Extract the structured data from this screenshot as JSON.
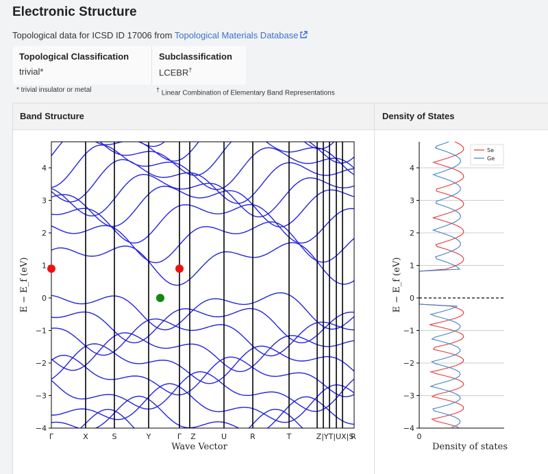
{
  "header": {
    "title": "Electronic Structure",
    "topo_prefix": "Topological data for ICSD ID 17006 from",
    "topo_link": "Topological Materials Database"
  },
  "classification": {
    "topo_header": "Topological Classification",
    "topo_value": "trivial*",
    "sub_header": "Subclassification",
    "sub_value": "LCEBR",
    "sub_marker": "†",
    "note1": "* trivial insulator or metal",
    "note2_marker": "†",
    "note2": "Linear Combination of Elementary Band Representations"
  },
  "panels": {
    "band_structure": "Band Structure",
    "dos": "Density of States"
  },
  "band_plot": {
    "y_ticks": [
      "4",
      "3",
      "2",
      "1",
      "0",
      "−1",
      "−2",
      "−3",
      "−4"
    ],
    "ylim": [
      -4,
      4.8
    ],
    "k_labels": [
      "Γ",
      "X",
      "S",
      "Y",
      "Γ",
      "Z",
      "U",
      "R",
      "T",
      "Z|YT|UX|S",
      "R"
    ],
    "xlabel": "Wave Vector",
    "ylabel": "E − E_f (eV)",
    "band_color": "#2222dd",
    "cbm_color": "#ee1111",
    "vbm_color": "#118811"
  },
  "dos_plot": {
    "y_ticks": [
      "4",
      "3",
      "2",
      "1",
      "0",
      "−1",
      "−2",
      "−3",
      "−4"
    ],
    "x_ticks": [
      "0"
    ],
    "xlabel": "Density of states",
    "ylabel": "E − E_f (eV)",
    "legend": [
      {
        "name": "Se",
        "color": "#e33333"
      },
      {
        "name": "Ge",
        "color": "#3d7fc4"
      }
    ]
  }
}
